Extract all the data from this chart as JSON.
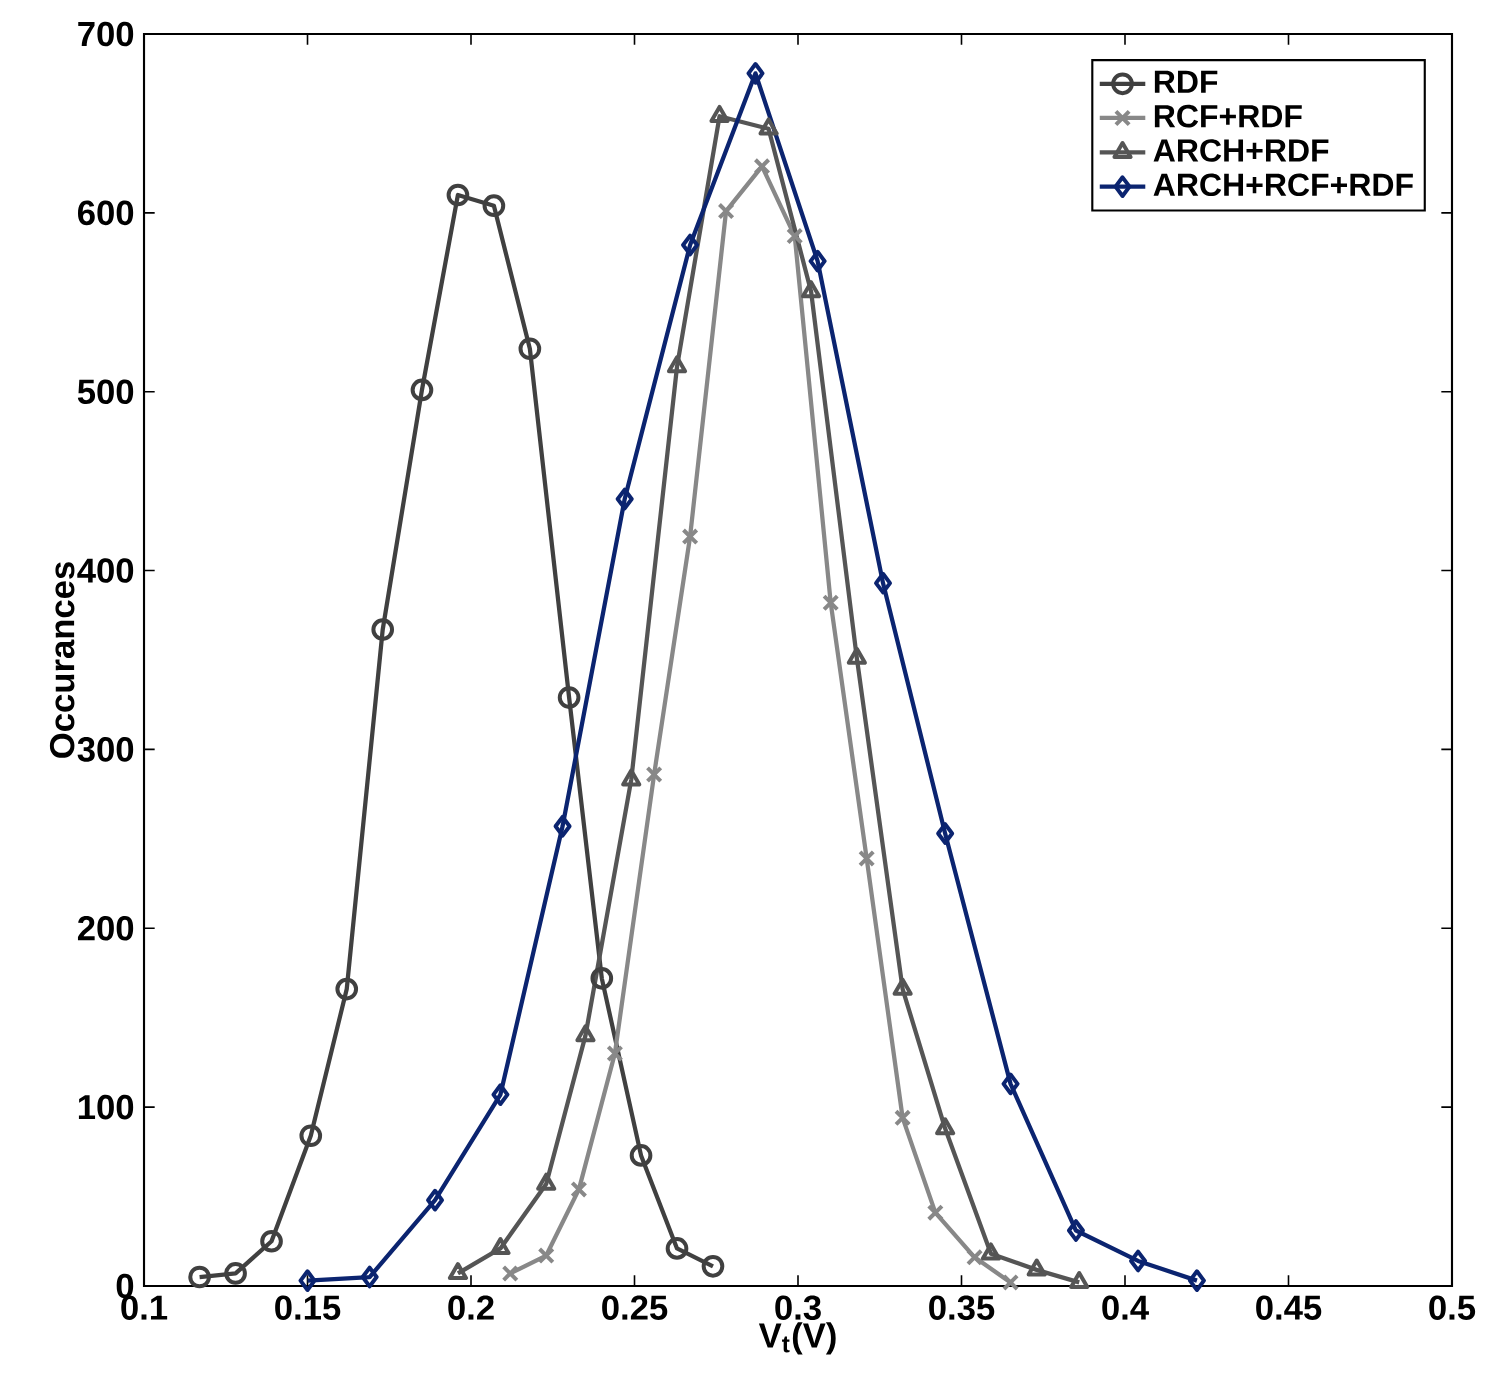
{
  "chart_data": {
    "type": "line",
    "xlabel": "V$_{t}$(V)",
    "ylabel": "Occurances",
    "xlim": [
      0.1,
      0.5
    ],
    "ylim": [
      0,
      700
    ],
    "xticks": [
      0.1,
      0.15,
      0.2,
      0.25,
      0.3,
      0.35,
      0.4,
      0.45,
      0.5
    ],
    "yticks": [
      0,
      100,
      200,
      300,
      400,
      500,
      600,
      700
    ],
    "grid": false,
    "legend": "top right",
    "line_style": "solid",
    "series": [
      {
        "name": "RDF",
        "color": "#404040",
        "marker": "circle",
        "x": [
          0.117,
          0.128,
          0.139,
          0.151,
          0.162,
          0.173,
          0.185,
          0.196,
          0.207,
          0.218,
          0.23,
          0.24,
          0.252,
          0.263,
          0.274
        ],
        "values": [
          5,
          7,
          25,
          84,
          166,
          367,
          501,
          610,
          604,
          524,
          329,
          172,
          73,
          21,
          11
        ]
      },
      {
        "name": "RCF+RDF",
        "color": "#888888",
        "marker": "cross",
        "x": [
          0.212,
          0.223,
          0.233,
          0.244,
          0.256,
          0.267,
          0.278,
          0.289,
          0.299,
          0.31,
          0.321,
          0.332,
          0.342,
          0.354,
          0.365
        ],
        "values": [
          7,
          17,
          54,
          130,
          286,
          419,
          601,
          626,
          587,
          382,
          239,
          94,
          41,
          16,
          2
        ]
      },
      {
        "name": "ARCH+RDF",
        "color": "#555555",
        "marker": "triangle",
        "x": [
          0.196,
          0.209,
          0.223,
          0.235,
          0.249,
          0.263,
          0.276,
          0.291,
          0.304,
          0.318,
          0.332,
          0.345,
          0.359,
          0.373,
          0.386
        ],
        "values": [
          7,
          21,
          57,
          140,
          283,
          514,
          654,
          647,
          556,
          351,
          166,
          88,
          18,
          9,
          2
        ]
      },
      {
        "name": "ARCH+RCF+RDF",
        "color": "#0b2470",
        "marker": "diamond",
        "x": [
          0.15,
          0.169,
          0.189,
          0.209,
          0.228,
          0.247,
          0.267,
          0.287,
          0.306,
          0.326,
          0.345,
          0.365,
          0.385,
          0.404,
          0.422
        ],
        "values": [
          3,
          5,
          48,
          107,
          257,
          440,
          582,
          678,
          573,
          393,
          253,
          113,
          31,
          14,
          3
        ]
      }
    ]
  }
}
